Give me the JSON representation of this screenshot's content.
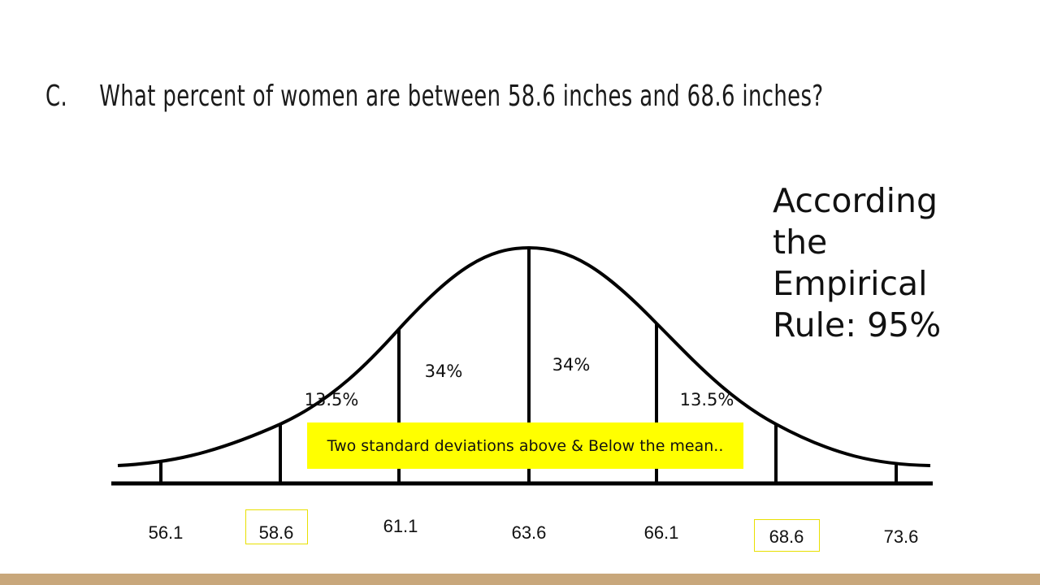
{
  "question": {
    "marker": "C.",
    "text": "What percent of women are between 58.6 inches and 68.6 inches?"
  },
  "answer": {
    "lines": [
      "According",
      "the",
      "Empirical",
      "Rule: 95%"
    ]
  },
  "diagram": {
    "percent_labels": [
      "13.5%",
      "34%",
      "34%",
      "13.5%"
    ],
    "tick_labels": [
      "56.1",
      "58.6",
      "61.1",
      "63.6",
      "66.1",
      "68.6",
      "73.6"
    ],
    "highlighted_ticks": [
      "58.6",
      "68.6"
    ],
    "caption": "Two standard deviations above & Below the mean.."
  },
  "colors": {
    "caption_bg": "#ffff00",
    "highlight_border": "#e8e000",
    "footer_bar": "#c8a77b"
  }
}
